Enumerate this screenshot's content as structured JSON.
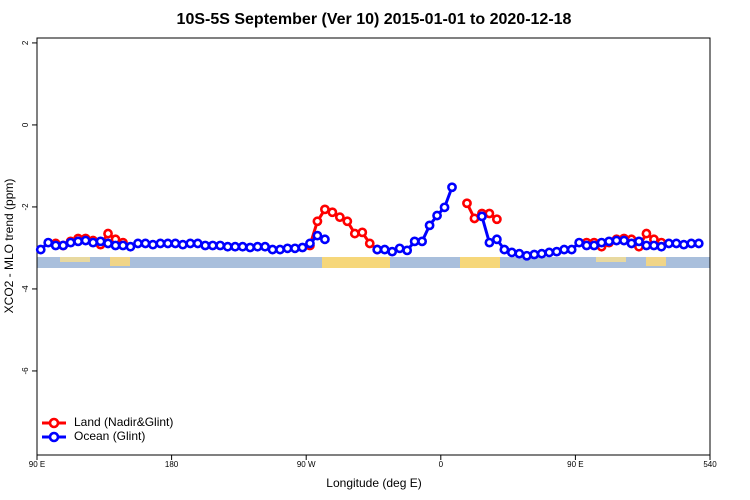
{
  "chart_data": {
    "type": "line",
    "title": "10S-5S September (Ver 10)   2015-01-01 to 2020-12-18",
    "x_label": "Longitude (deg E)",
    "y_label": "XCO2 - MLO trend (ppm)",
    "xlim": [
      90,
      540
    ],
    "ylim": [
      -8.05,
      2.12
    ],
    "xticks": [
      {
        "value": 90,
        "label": "90 E"
      },
      180,
      {
        "value": 270,
        "label": "90 W"
      },
      {
        "value": 360,
        "label": "0"
      },
      {
        "value": 450,
        "label": "90 E"
      },
      540
    ],
    "yticks": [
      -6,
      -4,
      -2,
      0,
      2
    ],
    "legend": "bottom-left",
    "x": [
      92.5,
      97.5,
      102.5,
      107.5,
      112.5,
      117.5,
      122.5,
      127.5,
      132.5,
      137.5,
      142.5,
      147.5,
      152.5,
      157.5,
      162.5,
      167.5,
      172.5,
      177.5,
      182.5,
      187.5,
      192.5,
      197.5,
      202.5,
      207.5,
      212.5,
      217.5,
      222.5,
      227.5,
      232.5,
      237.5,
      242.5,
      247.5,
      252.5,
      257.5,
      262.5,
      267.5,
      272.5,
      277.5,
      282.5,
      287.5,
      292.5,
      297.5,
      302.5,
      307.5,
      312.5,
      317.5,
      322.5,
      327.5,
      332.5,
      337.5,
      342.5,
      347.5,
      352.5,
      357.5,
      362.5,
      367.5,
      372.5,
      377.5,
      382.5,
      387.5,
      392.5,
      397.5,
      402.5,
      407.5,
      412.5,
      417.5,
      422.5,
      427.5,
      432.5,
      437.5,
      442.5,
      447.5,
      452.5,
      457.5,
      462.5,
      467.5,
      472.5,
      477.5,
      482.5,
      487.5,
      492.5,
      497.5,
      502.5,
      507.5,
      512.5,
      517.5,
      522.5,
      527.5,
      532.5
    ],
    "series": [
      {
        "name": "Land (Nadir&Glint)",
        "color": "#ff0000",
        "values": [
          null,
          null,
          -2.89,
          -2.94,
          -2.84,
          -2.77,
          -2.77,
          -2.82,
          -2.92,
          -2.65,
          -2.79,
          -2.87,
          null,
          null,
          null,
          null,
          null,
          null,
          null,
          null,
          null,
          null,
          null,
          null,
          null,
          null,
          null,
          null,
          null,
          null,
          null,
          null,
          null,
          null,
          null,
          null,
          -2.94,
          -2.35,
          -2.06,
          -2.13,
          -2.25,
          -2.35,
          -2.65,
          -2.62,
          -2.89,
          -3.04,
          null,
          null,
          null,
          null,
          null,
          null,
          null,
          null,
          null,
          null,
          null,
          -1.91,
          -2.28,
          -2.16,
          -2.16,
          -2.3,
          null,
          null,
          null,
          null,
          null,
          null,
          null,
          null,
          null,
          null,
          null,
          -2.87,
          -2.87,
          -2.97,
          -2.87,
          -2.79,
          -2.77,
          -2.79,
          -2.97,
          -2.65,
          -2.79,
          -2.87,
          null,
          null,
          null,
          null,
          null
        ]
      },
      {
        "name": "Ocean (Glint)",
        "color": "#0000ff",
        "values": [
          -3.04,
          -2.87,
          -2.94,
          -2.94,
          -2.87,
          -2.84,
          -2.82,
          -2.87,
          -2.84,
          -2.89,
          -2.94,
          -2.94,
          -2.97,
          -2.89,
          -2.89,
          -2.92,
          -2.89,
          -2.89,
          -2.89,
          -2.92,
          -2.89,
          -2.89,
          -2.94,
          -2.94,
          -2.94,
          -2.97,
          -2.97,
          -2.97,
          -2.99,
          -2.97,
          -2.97,
          -3.04,
          -3.04,
          -3.01,
          -3.01,
          -2.99,
          -2.89,
          -2.7,
          -2.79,
          null,
          null,
          null,
          null,
          null,
          null,
          -3.04,
          -3.04,
          -3.09,
          -3.01,
          -3.06,
          -2.84,
          -2.84,
          -2.45,
          -2.21,
          -2.01,
          -1.52,
          null,
          null,
          null,
          -2.23,
          -2.87,
          -2.79,
          -3.04,
          -3.11,
          -3.14,
          -3.19,
          -3.16,
          -3.14,
          -3.11,
          -3.09,
          -3.04,
          -3.04,
          -2.87,
          -2.94,
          -2.94,
          -2.87,
          -2.84,
          -2.82,
          -2.82,
          -2.89,
          -2.84,
          -2.94,
          -2.94,
          -2.97,
          -2.89,
          -2.89,
          -2.92,
          -2.89,
          -2.89
        ]
      }
    ]
  }
}
